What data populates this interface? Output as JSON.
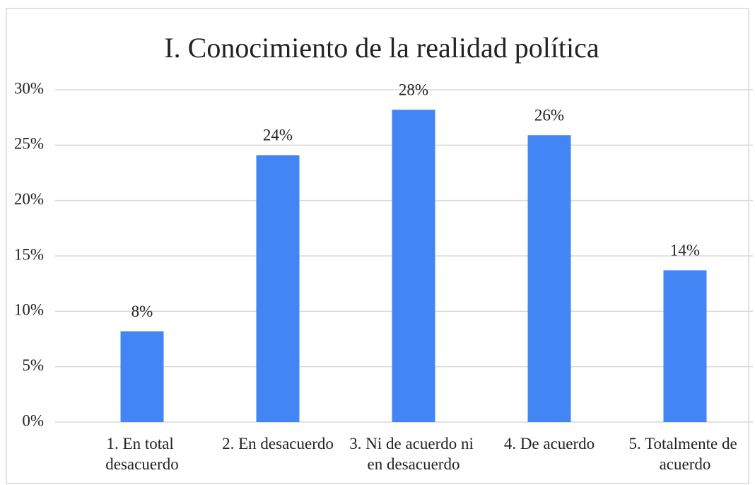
{
  "chart_data": {
    "type": "bar",
    "title": "I. Conocimiento de la realidad política",
    "categories": [
      "1. En total desacuerdo",
      "2. En desacuerdo",
      "3. Ni de acuerdo ni en desacuerdo",
      "4. De acuerdo",
      "5. Totalmente de acuerdo"
    ],
    "values": [
      8.2,
      24.1,
      28.2,
      25.9,
      13.7
    ],
    "value_labels": [
      "8%",
      "24%",
      "28%",
      "26%",
      "14%"
    ],
    "color": "#4285f4",
    "ylim": [
      0,
      30
    ],
    "yticks": [
      {
        "value": 0,
        "label": "0%"
      },
      {
        "value": 5,
        "label": "5%"
      },
      {
        "value": 10,
        "label": "10%"
      },
      {
        "value": 15,
        "label": "15%"
      },
      {
        "value": 20,
        "label": "20%"
      },
      {
        "value": 25,
        "label": "25%"
      },
      {
        "value": 30,
        "label": "30%"
      }
    ],
    "grid": true
  }
}
